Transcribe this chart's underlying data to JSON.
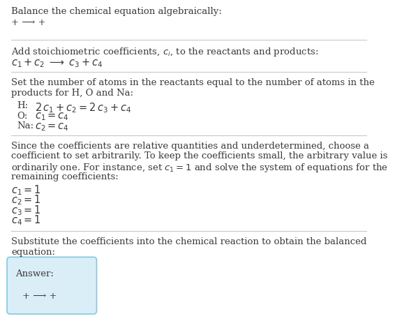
{
  "bg_color": "#ffffff",
  "text_color": "#3a3a3a",
  "title_line": "Balance the chemical equation algebraically:",
  "line1_plain": "+ ⟶ +",
  "section1_header": "Add stoichiometric coefficients, $c_i$, to the reactants and products:",
  "section1_eq": "$c_1 +c_2 \\;\\longrightarrow\\; c_3 +c_4$",
  "section2_header_l1": "Set the number of atoms in the reactants equal to the number of atoms in the",
  "section2_header_l2": "products for H, O and Na:",
  "section2_eqs": [
    [
      "H:",
      "$2\\,c_1 +c_2 = 2\\,c_3 +c_4$"
    ],
    [
      "O:",
      "$c_1 = c_4$"
    ],
    [
      "Na:",
      "$c_2 = c_4$"
    ]
  ],
  "section3_header_lines": [
    "Since the coefficients are relative quantities and underdetermined, choose a",
    "coefficient to set arbitrarily. To keep the coefficients small, the arbitrary value is",
    "ordinarily one. For instance, set $c_1 = 1$ and solve the system of equations for the",
    "remaining coefficients:"
  ],
  "section3_eqs": [
    "$c_1 = 1$",
    "$c_2 = 1$",
    "$c_3 = 1$",
    "$c_4 = 1$"
  ],
  "section4_header_l1": "Substitute the coefficients into the chemical reaction to obtain the balanced",
  "section4_header_l2": "equation:",
  "answer_label": "Answer:",
  "answer_eq": "+ ⟶ +",
  "answer_box_color": "#daeef8",
  "answer_box_edge": "#85c8e0",
  "separator_color": "#c8c8c8",
  "fs": 9.5,
  "fs_eq": 10.5
}
